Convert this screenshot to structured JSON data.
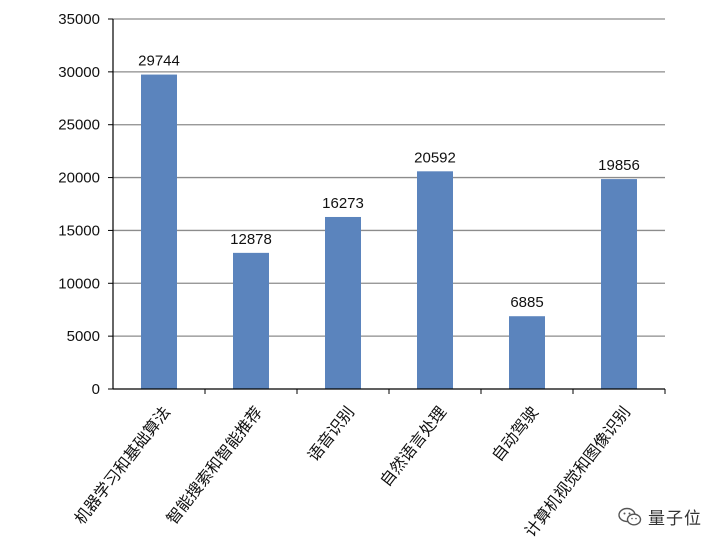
{
  "chart_data": {
    "type": "bar",
    "categories": [
      "机器学习和基础算法",
      "智能搜索和智能推荐",
      "语音识别",
      "自然语言处理",
      "自动驾驶",
      "计算机视觉和图像识别"
    ],
    "values": [
      29744,
      12878,
      16273,
      20592,
      6885,
      19856
    ],
    "title": "",
    "xlabel": "",
    "ylabel": "",
    "ylim": [
      0,
      35000
    ],
    "yticks": [
      0,
      5000,
      10000,
      15000,
      20000,
      25000,
      30000,
      35000
    ],
    "grid": "horizontal",
    "legend": "none",
    "data_labels": true,
    "colors": {
      "bar": "#5b84bd",
      "grid": "#8c8c8c",
      "axis": "#000000"
    }
  },
  "watermark": {
    "icon": "wechat-icon",
    "text": "量子位"
  }
}
